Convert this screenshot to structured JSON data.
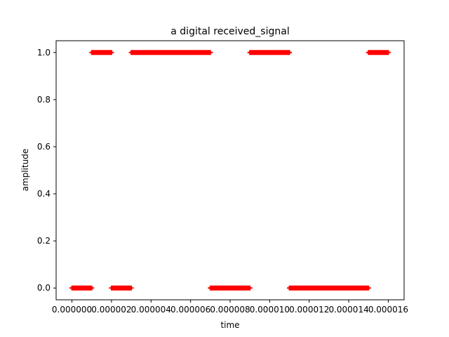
{
  "chart_data": {
    "type": "line",
    "title": "a digital received_signal",
    "xlabel": "time",
    "ylabel": "amplitude",
    "xlim": [
      -8e-07,
      1.68e-05
    ],
    "ylim": [
      -0.05,
      1.05
    ],
    "x_ticks": [
      0,
      2e-06,
      4e-06,
      6e-06,
      8e-06,
      1e-05,
      1.2e-05,
      1.4e-05,
      1.6e-05
    ],
    "x_tick_labels": [
      "0.000000",
      "0.000002",
      "0.000004",
      "0.000006",
      "0.000008",
      "0.000010",
      "0.000012",
      "0.000014",
      "0.000016"
    ],
    "y_ticks": [
      0,
      0.2,
      0.4,
      0.6,
      0.8,
      1.0
    ],
    "y_tick_labels": [
      "0.0",
      "0.2",
      "0.4",
      "0.6",
      "0.8",
      "1.0"
    ],
    "grid": false,
    "series": [
      {
        "color": "#ff0000",
        "marker": "plus",
        "segments": [
          {
            "x_start": 0.0,
            "x_end": 1e-06,
            "value": 0
          },
          {
            "x_start": 1e-06,
            "x_end": 2e-06,
            "value": 1
          },
          {
            "x_start": 2e-06,
            "x_end": 3e-06,
            "value": 0
          },
          {
            "x_start": 3e-06,
            "x_end": 7e-06,
            "value": 1
          },
          {
            "x_start": 7e-06,
            "x_end": 9e-06,
            "value": 0
          },
          {
            "x_start": 9e-06,
            "x_end": 1.1e-05,
            "value": 1
          },
          {
            "x_start": 1.1e-05,
            "x_end": 1.5e-05,
            "value": 0
          },
          {
            "x_start": 1.5e-05,
            "x_end": 1.6e-05,
            "value": 1
          }
        ]
      }
    ]
  }
}
